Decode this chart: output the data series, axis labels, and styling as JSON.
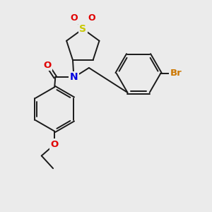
{
  "background_color": "#ebebeb",
  "bond_color": "#1a1a1a",
  "S_color": "#c8c800",
  "N_color": "#0000e0",
  "O_color": "#e00000",
  "Br_color": "#cc7700",
  "figsize": [
    3.0,
    3.0
  ],
  "dpi": 100,
  "xlim": [
    0,
    10
  ],
  "ylim": [
    0,
    10
  ]
}
